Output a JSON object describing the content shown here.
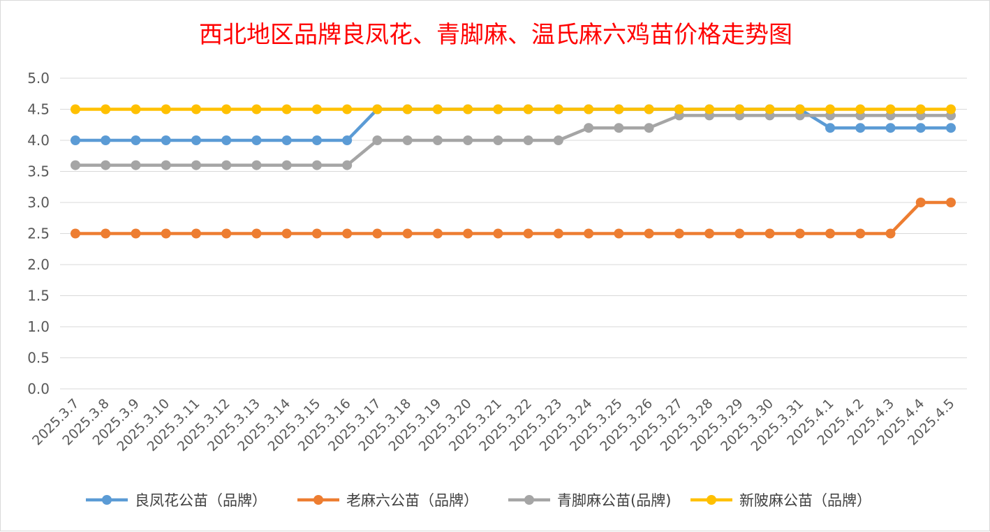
{
  "chart_data": {
    "type": "line",
    "title": "西北地区品牌良凤花、青脚麻、温氏麻六鸡苗价格走势图",
    "xlabel": "",
    "ylabel": "",
    "ylim": [
      0,
      5
    ],
    "yticks": [
      "0.0",
      "0.5",
      "1.0",
      "1.5",
      "2.0",
      "2.5",
      "3.0",
      "3.5",
      "4.0",
      "4.5",
      "5.0"
    ],
    "grid": true,
    "legend_position": "bottom",
    "categories": [
      "2025.3.7",
      "2025.3.8",
      "2025.3.9",
      "2025.3.10",
      "2025.3.11",
      "2025.3.12",
      "2025.3.13",
      "2025.3.14",
      "2025.3.15",
      "2025.3.16",
      "2025.3.17",
      "2025.3.18",
      "2025.3.19",
      "2025.3.20",
      "2025.3.21",
      "2025.3.22",
      "2025.3.23",
      "2025.3.24",
      "2025.3.25",
      "2025.3.26",
      "2025.3.27",
      "2025.3.28",
      "2025.3.29",
      "2025.3.30",
      "2025.3.31",
      "2025.4.1",
      "2025.4.2",
      "2025.4.3",
      "2025.4.4",
      "2025.4.5"
    ],
    "series": [
      {
        "name": "良凤花公苗（品牌）",
        "color": "#5b9bd5",
        "values": [
          4.0,
          4.0,
          4.0,
          4.0,
          4.0,
          4.0,
          4.0,
          4.0,
          4.0,
          4.0,
          4.5,
          4.5,
          4.5,
          4.5,
          4.5,
          4.5,
          4.5,
          4.5,
          4.5,
          4.5,
          4.5,
          4.5,
          4.5,
          4.5,
          4.5,
          4.2,
          4.2,
          4.2,
          4.2,
          4.2
        ]
      },
      {
        "name": "老麻六公苗（品牌）",
        "color": "#ed7d31",
        "values": [
          2.5,
          2.5,
          2.5,
          2.5,
          2.5,
          2.5,
          2.5,
          2.5,
          2.5,
          2.5,
          2.5,
          2.5,
          2.5,
          2.5,
          2.5,
          2.5,
          2.5,
          2.5,
          2.5,
          2.5,
          2.5,
          2.5,
          2.5,
          2.5,
          2.5,
          2.5,
          2.5,
          2.5,
          3.0,
          3.0
        ]
      },
      {
        "name": "青脚麻公苗(品牌)",
        "color": "#a5a5a5",
        "values": [
          3.6,
          3.6,
          3.6,
          3.6,
          3.6,
          3.6,
          3.6,
          3.6,
          3.6,
          3.6,
          4.0,
          4.0,
          4.0,
          4.0,
          4.0,
          4.0,
          4.0,
          4.2,
          4.2,
          4.2,
          4.4,
          4.4,
          4.4,
          4.4,
          4.4,
          4.4,
          4.4,
          4.4,
          4.4,
          4.4
        ]
      },
      {
        "name": "新陂麻公苗（品牌）",
        "color": "#ffc000",
        "values": [
          4.5,
          4.5,
          4.5,
          4.5,
          4.5,
          4.5,
          4.5,
          4.5,
          4.5,
          4.5,
          4.5,
          4.5,
          4.5,
          4.5,
          4.5,
          4.5,
          4.5,
          4.5,
          4.5,
          4.5,
          4.5,
          4.5,
          4.5,
          4.5,
          4.5,
          4.5,
          4.5,
          4.5,
          4.5,
          4.5
        ]
      }
    ]
  }
}
